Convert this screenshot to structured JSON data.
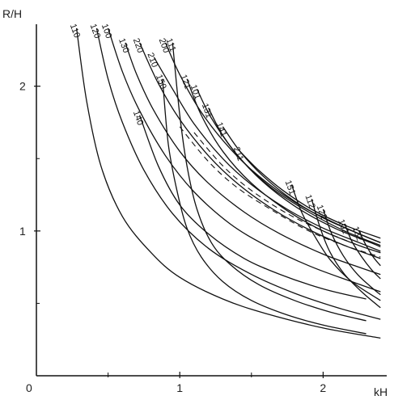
{
  "chart_data": {
    "type": "line",
    "title": "",
    "xlabel": "kH",
    "ylabel": "R/H",
    "xlim": [
      0,
      2.5
    ],
    "ylim": [
      0,
      2.4
    ],
    "xticks": [
      "0",
      "1",
      "2"
    ],
    "yticks": [
      "1",
      "2"
    ],
    "grid": false,
    "legend": "none",
    "colors": {
      "line": "#111111",
      "axis": "#111111",
      "background": "#ffffff"
    },
    "series": [
      {
        "name": "110",
        "x": [
          0.28,
          0.35,
          0.45,
          0.6,
          0.8,
          1.0,
          1.3,
          1.6,
          2.0,
          2.4
        ],
        "y": [
          2.4,
          1.9,
          1.45,
          1.1,
          0.85,
          0.68,
          0.53,
          0.43,
          0.33,
          0.26
        ]
      },
      {
        "name": "120",
        "x": [
          0.42,
          0.5,
          0.6,
          0.75,
          0.95,
          1.2,
          1.5,
          1.8,
          2.1,
          2.4
        ],
        "y": [
          2.4,
          2.05,
          1.75,
          1.42,
          1.12,
          0.88,
          0.7,
          0.57,
          0.47,
          0.39
        ]
      },
      {
        "name": "100",
        "x": [
          0.5,
          0.6,
          0.72,
          0.9,
          1.1,
          1.35,
          1.6,
          1.9,
          2.2,
          2.4
        ],
        "y": [
          2.4,
          2.1,
          1.83,
          1.52,
          1.27,
          1.05,
          0.9,
          0.76,
          0.65,
          0.58
        ]
      },
      {
        "name": "130",
        "x": [
          0.62,
          0.7,
          0.82,
          1.0,
          1.2,
          1.45,
          1.7,
          2.0,
          2.25,
          2.4
        ],
        "y": [
          2.3,
          2.08,
          1.83,
          1.55,
          1.33,
          1.13,
          0.98,
          0.84,
          0.75,
          0.7
        ]
      },
      {
        "name": "220",
        "x": [
          0.72,
          0.85,
          1.0,
          1.2,
          1.4,
          1.65,
          1.9,
          2.15,
          2.4
        ],
        "y": [
          2.3,
          2.02,
          1.77,
          1.52,
          1.33,
          1.15,
          1.01,
          0.9,
          0.81
        ]
      },
      {
        "name": "210",
        "x": [
          0.82,
          0.95,
          1.1,
          1.3,
          1.5,
          1.75,
          2.0,
          2.25,
          2.4
        ],
        "y": [
          2.2,
          1.98,
          1.74,
          1.5,
          1.32,
          1.15,
          1.02,
          0.92,
          0.86
        ]
      },
      {
        "name": "200",
        "x": [
          0.9,
          1.0,
          1.15,
          1.35,
          1.55,
          1.8,
          2.05,
          2.3,
          2.4
        ],
        "y": [
          2.3,
          2.08,
          1.82,
          1.57,
          1.38,
          1.2,
          1.07,
          0.96,
          0.92
        ]
      },
      {
        "name": "111",
        "x": [
          0.95,
          1.0,
          1.05,
          1.12,
          1.22,
          1.35,
          1.55,
          1.8,
          2.05,
          2.3
        ],
        "y": [
          2.3,
          1.8,
          1.45,
          1.15,
          0.92,
          0.77,
          0.63,
          0.52,
          0.44,
          0.38
        ]
      },
      {
        "name": "150",
        "x": [
          0.88,
          0.92,
          0.98,
          1.05,
          1.15,
          1.3,
          1.5,
          1.75,
          2.0,
          2.3
        ],
        "y": [
          2.05,
          1.6,
          1.28,
          1.02,
          0.82,
          0.65,
          0.52,
          0.42,
          0.35,
          0.29
        ]
      },
      {
        "name": "140",
        "x": [
          0.72,
          0.85,
          1.0,
          1.2,
          1.45,
          1.7,
          2.0,
          2.3
        ],
        "y": [
          1.8,
          1.45,
          1.18,
          0.98,
          0.81,
          0.7,
          0.6,
          0.53
        ]
      },
      {
        "name": "121",
        "x": [
          1.05,
          1.15,
          1.3,
          1.5,
          1.75,
          2.0,
          2.25,
          2.4
        ],
        "y": [
          2.05,
          1.8,
          1.55,
          1.33,
          1.14,
          1.0,
          0.9,
          0.85
        ]
      },
      {
        "name": "101",
        "x": [
          1.12,
          1.22,
          1.38,
          1.58,
          1.82,
          2.08,
          2.33,
          2.4
        ],
        "y": [
          1.98,
          1.78,
          1.55,
          1.34,
          1.16,
          1.02,
          0.92,
          0.89
        ]
      },
      {
        "name": "131",
        "x": [
          1.2,
          1.3,
          1.45,
          1.65,
          1.9,
          2.15,
          2.4
        ],
        "y": [
          1.85,
          1.66,
          1.47,
          1.29,
          1.13,
          1.0,
          0.9
        ]
      },
      {
        "name": "141",
        "x": [
          1.3,
          1.42,
          1.58,
          1.78,
          2.0,
          2.25,
          2.4
        ],
        "y": [
          1.72,
          1.55,
          1.38,
          1.22,
          1.09,
          0.98,
          0.92
        ]
      },
      {
        "name": "211",
        "x": [
          1.42,
          1.55,
          1.72,
          1.92,
          2.15,
          2.4
        ],
        "y": [
          1.55,
          1.42,
          1.28,
          1.15,
          1.04,
          0.95
        ]
      },
      {
        "name": "151",
        "x": [
          1.78,
          1.85,
          1.95,
          2.05,
          2.2,
          2.4
        ],
        "y": [
          1.32,
          1.13,
          0.95,
          0.8,
          0.65,
          0.52
        ]
      },
      {
        "name": "112",
        "x": [
          1.92,
          1.98,
          2.05,
          2.15,
          2.28,
          2.4
        ],
        "y": [
          1.22,
          1.02,
          0.85,
          0.7,
          0.57,
          0.47
        ]
      },
      {
        "name": "122",
        "x": [
          2.0,
          2.06,
          2.14,
          2.24,
          2.35,
          2.4
        ],
        "y": [
          1.15,
          0.98,
          0.83,
          0.7,
          0.6,
          0.56
        ]
      },
      {
        "name": "102",
        "x": [
          2.15,
          2.2,
          2.27,
          2.34,
          2.4
        ],
        "y": [
          1.05,
          0.93,
          0.82,
          0.73,
          0.67
        ]
      },
      {
        "name": "132",
        "x": [
          2.25,
          2.3,
          2.35,
          2.4
        ],
        "y": [
          1.0,
          0.9,
          0.82,
          0.76
        ]
      }
    ],
    "dashed_series": [
      {
        "x": [
          1.0,
          1.2,
          1.4,
          1.65,
          1.9,
          2.15,
          2.4
        ],
        "y": [
          1.72,
          1.48,
          1.3,
          1.14,
          1.0,
          0.9,
          0.82
        ]
      },
      {
        "x": [
          1.1,
          1.3,
          1.5,
          1.75,
          2.0,
          2.25,
          2.4
        ],
        "y": [
          1.68,
          1.45,
          1.28,
          1.12,
          1.0,
          0.9,
          0.85
        ]
      }
    ]
  }
}
